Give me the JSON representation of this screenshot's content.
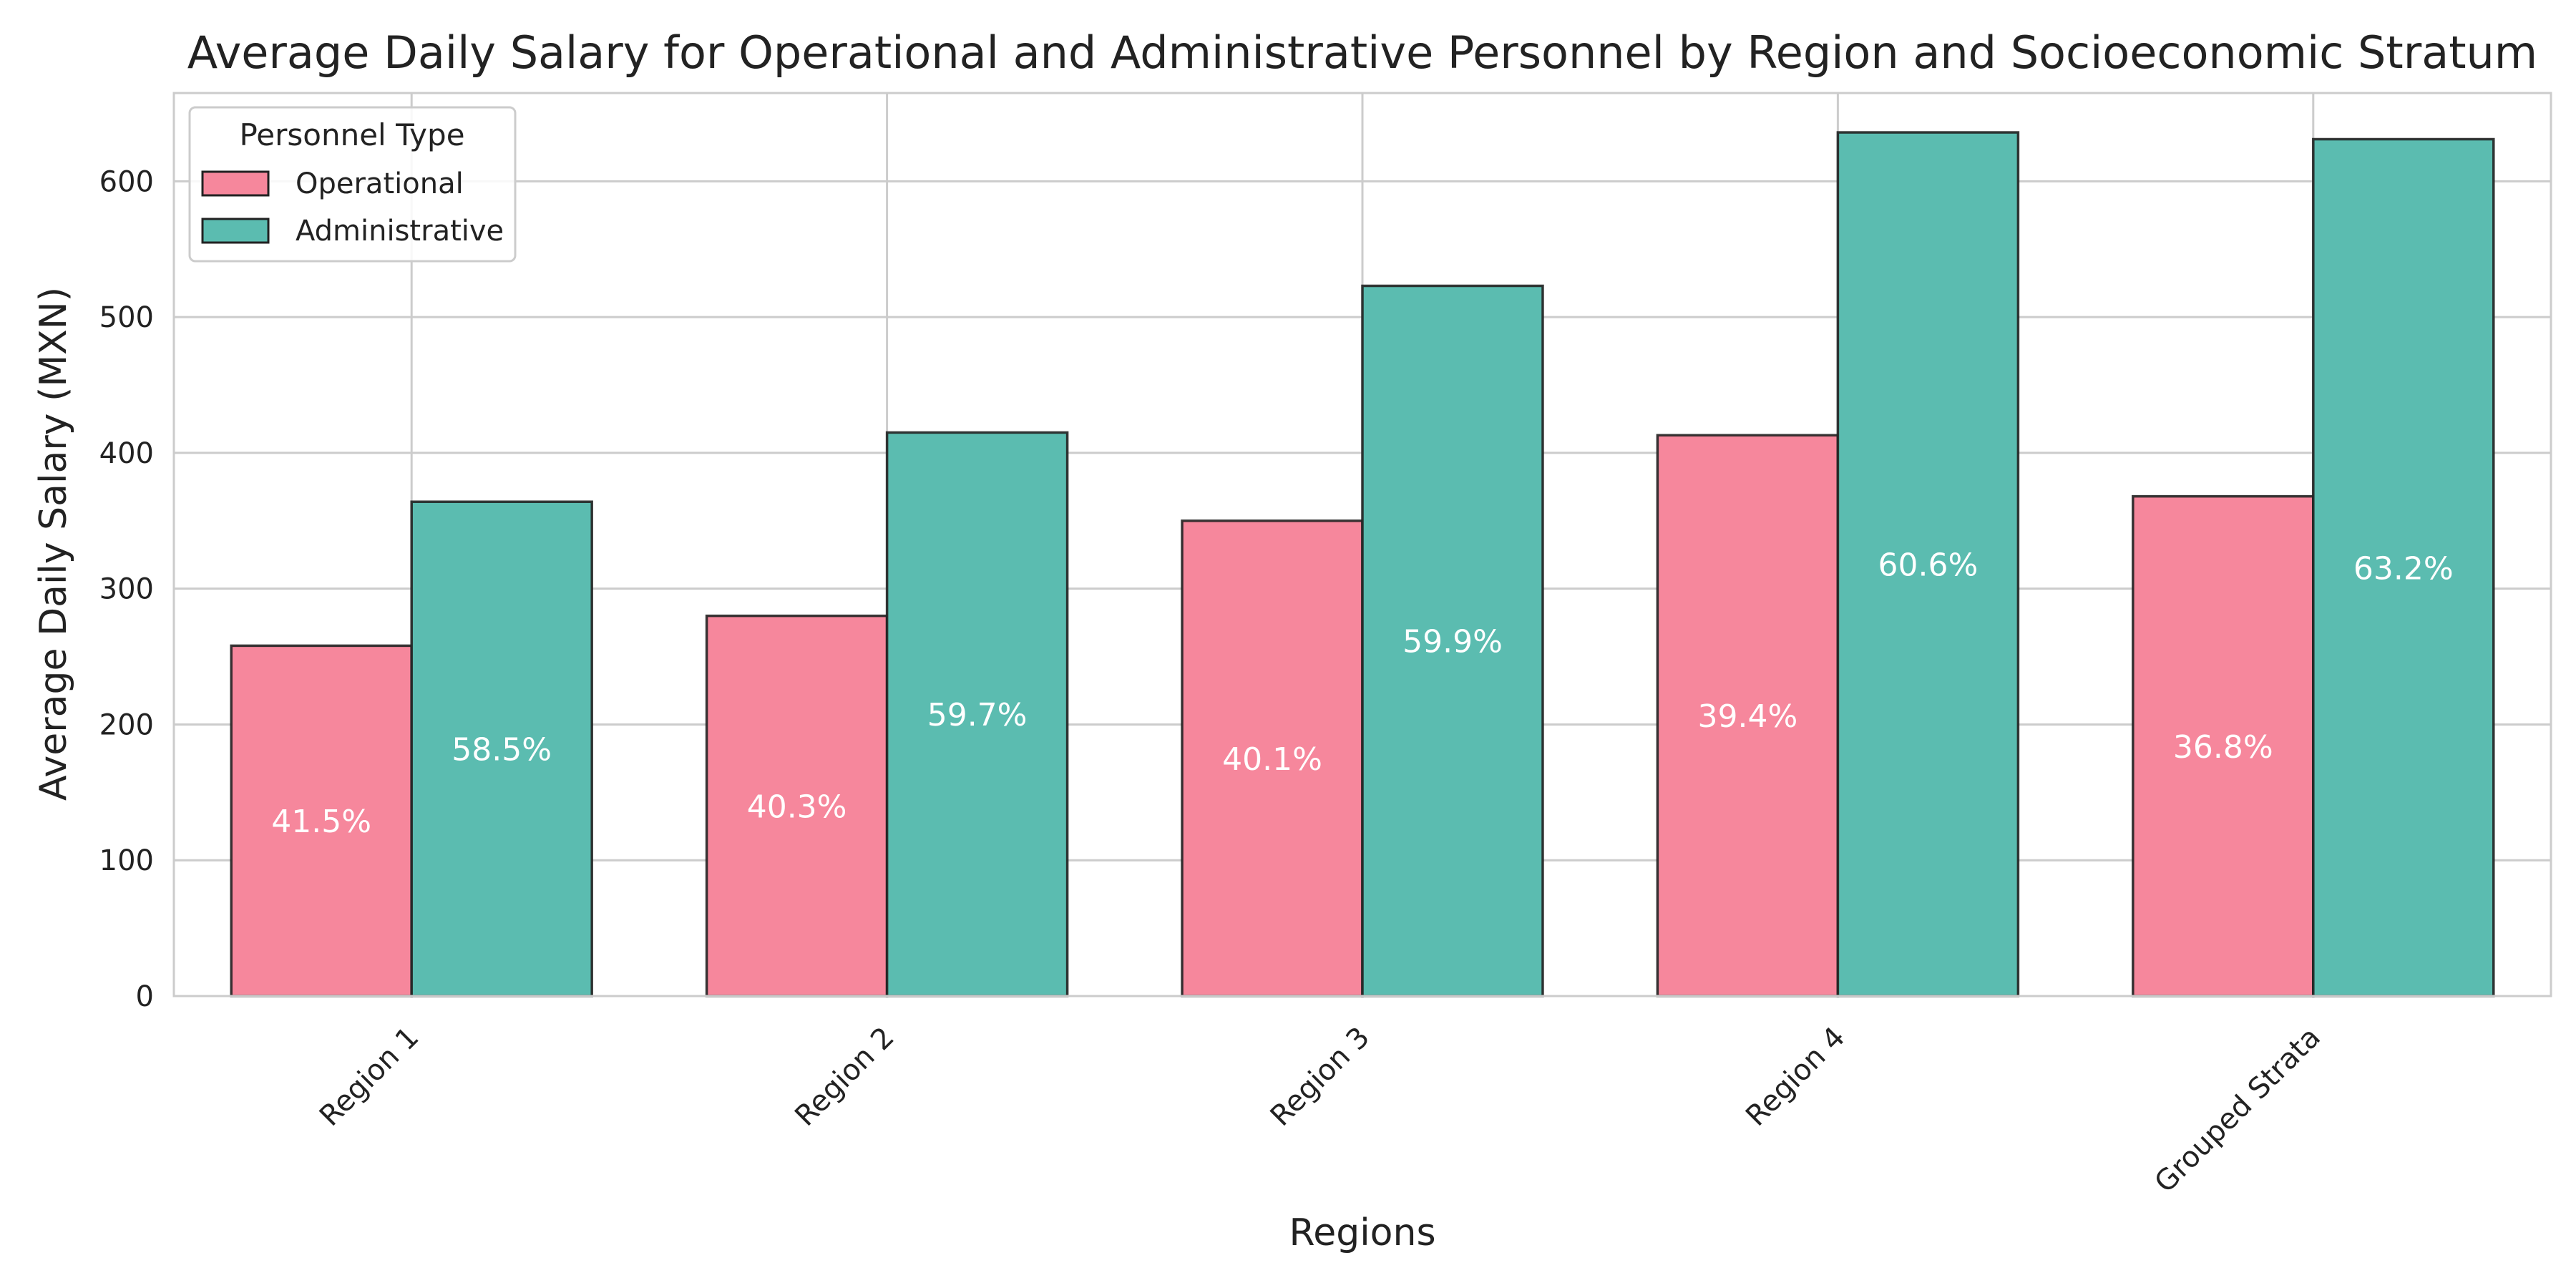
{
  "chart_data": {
    "type": "bar",
    "title": "Average Daily Salary for Operational and Administrative Personnel by Region and Socioeconomic Stratum",
    "xlabel": "Regions",
    "ylabel": "Average Daily Salary (MXN)",
    "categories": [
      "Region 1",
      "Region 2",
      "Region 3",
      "Region 4",
      "Grouped Strata"
    ],
    "ylim": [
      0,
      665
    ],
    "yticks": [
      0,
      100,
      200,
      300,
      400,
      500,
      600
    ],
    "grid": true,
    "legend": {
      "title": "Personnel Type",
      "position": "top-left"
    },
    "series": [
      {
        "name": "Operational",
        "color": "#f6879c",
        "values": [
          258,
          280,
          350,
          413,
          368
        ],
        "labels": [
          "41.5%",
          "40.3%",
          "40.1%",
          "39.4%",
          "36.8%"
        ]
      },
      {
        "name": "Administrative",
        "color": "#5bbcb0",
        "values": [
          364,
          415,
          523,
          636,
          631
        ],
        "labels": [
          "58.5%",
          "59.7%",
          "59.9%",
          "60.6%",
          "63.2%"
        ]
      }
    ]
  }
}
